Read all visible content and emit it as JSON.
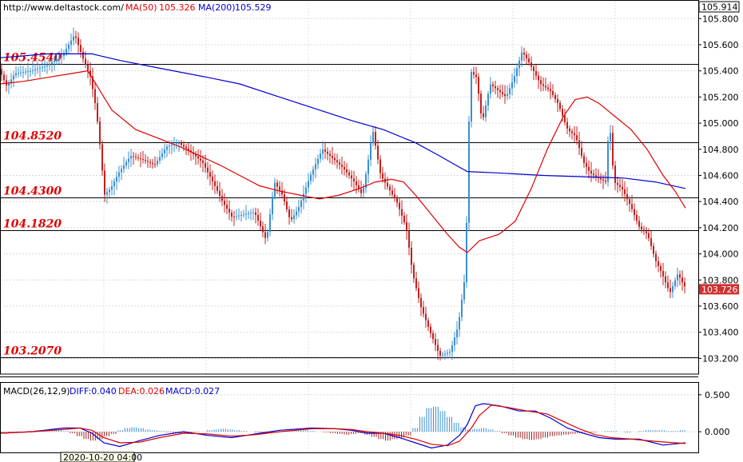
{
  "chart_data": [
    {
      "type": "candlestick",
      "source": "http://www.deltastock.com/",
      "indicators": [
        {
          "label": "MA(50)",
          "value": "105.326",
          "color": "#e00000"
        },
        {
          "label": "MA(200)",
          "value": "105.529",
          "color": "#0000d0"
        }
      ],
      "ylim": [
        103.08,
        105.93
      ],
      "y_ticks": [
        "105.800",
        "105.600",
        "105.400",
        "105.200",
        "105.000",
        "104.800",
        "104.600",
        "104.400",
        "104.200",
        "104.000",
        "103.800",
        "103.600",
        "103.400",
        "103.200"
      ],
      "top_price_label": "105.914",
      "last_price_label": "103.726",
      "last_price": 103.726,
      "levels": [
        {
          "label": "105.4540",
          "value": 105.454
        },
        {
          "label": "104.8520",
          "value": 104.852
        },
        {
          "label": "104.4300",
          "value": 104.43
        },
        {
          "label": "104.1820",
          "value": 104.182
        },
        {
          "label": "103.2070",
          "value": 103.207
        }
      ],
      "price_path": [
        [
          0,
          105.42
        ],
        [
          10,
          105.28
        ],
        [
          20,
          105.38
        ],
        [
          40,
          105.4
        ],
        [
          60,
          105.44
        ],
        [
          80,
          105.52
        ],
        [
          95,
          105.68
        ],
        [
          105,
          105.5
        ],
        [
          115,
          105.35
        ],
        [
          122,
          105.1
        ],
        [
          128,
          104.75
        ],
        [
          132,
          104.45
        ],
        [
          140,
          104.5
        ],
        [
          150,
          104.62
        ],
        [
          165,
          104.75
        ],
        [
          180,
          104.72
        ],
        [
          195,
          104.68
        ],
        [
          210,
          104.82
        ],
        [
          225,
          104.85
        ],
        [
          240,
          104.78
        ],
        [
          255,
          104.7
        ],
        [
          268,
          104.55
        ],
        [
          280,
          104.4
        ],
        [
          292,
          104.28
        ],
        [
          305,
          104.3
        ],
        [
          320,
          104.32
        ],
        [
          335,
          104.1
        ],
        [
          345,
          104.55
        ],
        [
          355,
          104.45
        ],
        [
          365,
          104.25
        ],
        [
          375,
          104.35
        ],
        [
          390,
          104.6
        ],
        [
          405,
          104.8
        ],
        [
          420,
          104.72
        ],
        [
          432,
          104.65
        ],
        [
          445,
          104.55
        ],
        [
          455,
          104.45
        ],
        [
          462,
          104.7
        ],
        [
          468,
          104.95
        ],
        [
          478,
          104.6
        ],
        [
          488,
          104.5
        ],
        [
          498,
          104.4
        ],
        [
          510,
          104.2
        ],
        [
          518,
          103.85
        ],
        [
          528,
          103.6
        ],
        [
          540,
          103.4
        ],
        [
          552,
          103.22
        ],
        [
          565,
          103.25
        ],
        [
          575,
          103.45
        ],
        [
          584,
          103.85
        ],
        [
          590,
          105.4
        ],
        [
          598,
          105.35
        ],
        [
          605,
          105.0
        ],
        [
          615,
          105.3
        ],
        [
          625,
          105.25
        ],
        [
          635,
          105.2
        ],
        [
          645,
          105.35
        ],
        [
          655,
          105.55
        ],
        [
          665,
          105.45
        ],
        [
          678,
          105.3
        ],
        [
          690,
          105.25
        ],
        [
          700,
          105.15
        ],
        [
          712,
          104.95
        ],
        [
          722,
          104.9
        ],
        [
          732,
          104.7
        ],
        [
          740,
          104.62
        ],
        [
          750,
          104.58
        ],
        [
          760,
          104.55
        ],
        [
          764,
          105.05
        ],
        [
          770,
          104.55
        ],
        [
          780,
          104.5
        ],
        [
          792,
          104.35
        ],
        [
          802,
          104.2
        ],
        [
          812,
          104.15
        ],
        [
          822,
          103.95
        ],
        [
          830,
          103.85
        ],
        [
          840,
          103.7
        ],
        [
          850,
          103.85
        ],
        [
          858,
          103.75
        ]
      ],
      "ma50": [
        [
          0,
          105.3
        ],
        [
          30,
          105.32
        ],
        [
          60,
          105.35
        ],
        [
          90,
          105.38
        ],
        [
          110,
          105.4
        ],
        [
          140,
          105.1
        ],
        [
          170,
          104.95
        ],
        [
          200,
          104.88
        ],
        [
          225,
          104.82
        ],
        [
          250,
          104.75
        ],
        [
          275,
          104.68
        ],
        [
          300,
          104.6
        ],
        [
          325,
          104.52
        ],
        [
          350,
          104.48
        ],
        [
          375,
          104.45
        ],
        [
          400,
          104.42
        ],
        [
          425,
          104.45
        ],
        [
          450,
          104.5
        ],
        [
          470,
          104.55
        ],
        [
          490,
          104.57
        ],
        [
          505,
          104.55
        ],
        [
          520,
          104.45
        ],
        [
          540,
          104.3
        ],
        [
          560,
          104.15
        ],
        [
          575,
          104.05
        ],
        [
          585,
          104.01
        ],
        [
          600,
          104.1
        ],
        [
          625,
          104.15
        ],
        [
          645,
          104.25
        ],
        [
          665,
          104.5
        ],
        [
          685,
          104.8
        ],
        [
          705,
          105.05
        ],
        [
          720,
          105.18
        ],
        [
          735,
          105.2
        ],
        [
          750,
          105.15
        ],
        [
          770,
          105.05
        ],
        [
          790,
          104.95
        ],
        [
          810,
          104.8
        ],
        [
          830,
          104.6
        ],
        [
          845,
          104.48
        ],
        [
          858,
          104.35
        ]
      ],
      "ma200": [
        [
          0,
          105.5
        ],
        [
          60,
          105.53
        ],
        [
          115,
          105.53
        ],
        [
          150,
          105.48
        ],
        [
          200,
          105.42
        ],
        [
          260,
          105.35
        ],
        [
          300,
          105.3
        ],
        [
          350,
          105.2
        ],
        [
          400,
          105.1
        ],
        [
          440,
          105.02
        ],
        [
          480,
          104.95
        ],
        [
          520,
          104.85
        ],
        [
          550,
          104.75
        ],
        [
          570,
          104.68
        ],
        [
          585,
          104.63
        ],
        [
          620,
          104.62
        ],
        [
          680,
          104.6
        ],
        [
          730,
          104.59
        ],
        [
          780,
          104.58
        ],
        [
          820,
          104.55
        ],
        [
          858,
          104.5
        ]
      ]
    },
    {
      "type": "macd",
      "label": "MACD(26,12,9)",
      "diff": {
        "label": "DIFF:0.040",
        "color": "#0000d0"
      },
      "dea": {
        "label": "DEA:0.026",
        "color": "#e00000"
      },
      "macd": {
        "label": "MACD:0.027",
        "color": "#e00000"
      },
      "ylim": [
        -0.28,
        0.65
      ],
      "y_ticks": [
        "0.500",
        "0.000"
      ],
      "diff_path": [
        [
          0,
          -0.02
        ],
        [
          40,
          0.0
        ],
        [
          80,
          0.05
        ],
        [
          100,
          0.05
        ],
        [
          115,
          -0.02
        ],
        [
          130,
          -0.15
        ],
        [
          150,
          -0.2
        ],
        [
          175,
          -0.12
        ],
        [
          200,
          -0.05
        ],
        [
          230,
          0.0
        ],
        [
          260,
          -0.05
        ],
        [
          290,
          -0.08
        ],
        [
          320,
          -0.03
        ],
        [
          350,
          0.02
        ],
        [
          390,
          0.05
        ],
        [
          420,
          0.04
        ],
        [
          440,
          0.02
        ],
        [
          460,
          -0.02
        ],
        [
          480,
          -0.02
        ],
        [
          500,
          -0.08
        ],
        [
          520,
          -0.15
        ],
        [
          540,
          -0.22
        ],
        [
          560,
          -0.18
        ],
        [
          575,
          -0.05
        ],
        [
          585,
          0.1
        ],
        [
          595,
          0.35
        ],
        [
          605,
          0.38
        ],
        [
          625,
          0.35
        ],
        [
          650,
          0.28
        ],
        [
          670,
          0.28
        ],
        [
          690,
          0.18
        ],
        [
          710,
          0.05
        ],
        [
          730,
          -0.02
        ],
        [
          750,
          -0.08
        ],
        [
          770,
          -0.1
        ],
        [
          800,
          -0.1
        ],
        [
          830,
          -0.18
        ],
        [
          858,
          -0.15
        ]
      ],
      "dea_path": [
        [
          0,
          -0.02
        ],
        [
          40,
          0.0
        ],
        [
          80,
          0.03
        ],
        [
          100,
          0.05
        ],
        [
          115,
          0.02
        ],
        [
          130,
          -0.08
        ],
        [
          150,
          -0.15
        ],
        [
          175,
          -0.14
        ],
        [
          200,
          -0.08
        ],
        [
          230,
          -0.02
        ],
        [
          260,
          -0.03
        ],
        [
          290,
          -0.06
        ],
        [
          320,
          -0.04
        ],
        [
          350,
          0.0
        ],
        [
          390,
          0.04
        ],
        [
          420,
          0.04
        ],
        [
          440,
          0.03
        ],
        [
          460,
          0.0
        ],
        [
          480,
          -0.02
        ],
        [
          500,
          -0.05
        ],
        [
          520,
          -0.1
        ],
        [
          540,
          -0.17
        ],
        [
          560,
          -0.19
        ],
        [
          575,
          -0.13
        ],
        [
          590,
          0.05
        ],
        [
          600,
          0.22
        ],
        [
          615,
          0.36
        ],
        [
          635,
          0.33
        ],
        [
          660,
          0.28
        ],
        [
          685,
          0.24
        ],
        [
          705,
          0.14
        ],
        [
          725,
          0.04
        ],
        [
          745,
          -0.04
        ],
        [
          765,
          -0.08
        ],
        [
          790,
          -0.1
        ],
        [
          820,
          -0.13
        ],
        [
          858,
          -0.16
        ]
      ],
      "histogram": [
        -0.02,
        -0.02,
        -0.01,
        0.0,
        0.01,
        0.02,
        0.02,
        0.03,
        0.02,
        0.01,
        -0.02,
        -0.06,
        -0.1,
        -0.12,
        -0.1,
        -0.06,
        -0.03,
        0.02,
        0.05,
        0.06,
        0.05,
        0.03,
        0.02,
        0.01,
        -0.01,
        -0.02,
        -0.03,
        -0.02,
        -0.01,
        0.0,
        0.02,
        0.03,
        0.04,
        0.03,
        0.02,
        0.01,
        0.0,
        -0.01,
        -0.02,
        -0.01,
        0.0,
        0.01,
        0.02,
        0.03,
        0.02,
        0.01,
        0.0,
        -0.01,
        -0.02,
        -0.03,
        -0.04,
        -0.03,
        -0.02,
        -0.04,
        -0.07,
        -0.1,
        -0.12,
        -0.1,
        -0.08,
        -0.05,
        0.05,
        0.2,
        0.32,
        0.34,
        0.28,
        0.2,
        0.12,
        0.06,
        0.03,
        0.04,
        0.05,
        0.03,
        0.01,
        -0.02,
        -0.05,
        -0.08,
        -0.1,
        -0.11,
        -0.1,
        -0.08,
        -0.06,
        -0.05,
        -0.04,
        -0.03,
        -0.02,
        -0.01,
        -0.01,
        0.0,
        0.01,
        0.01,
        0.0,
        -0.01,
        0.0,
        0.01,
        0.02,
        0.02,
        0.02,
        0.01,
        0.01,
        0.02
      ]
    }
  ],
  "x_label": "2020-10-20 04:00"
}
